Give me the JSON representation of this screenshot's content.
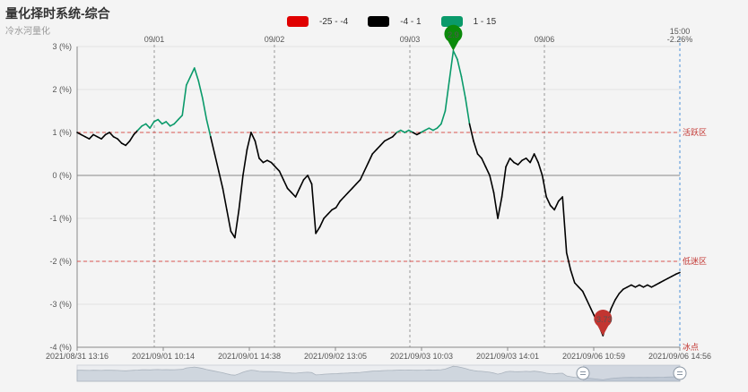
{
  "header": {
    "title": "量化择时系统-综合",
    "subtitle": "冷水河量化"
  },
  "legend": [
    {
      "label": "-25 - -4",
      "color": "#e00000"
    },
    {
      "label": "-4 - 1",
      "color": "#000000"
    },
    {
      "label": "1 - 15",
      "color": "#0a9a6a"
    }
  ],
  "chart_data": {
    "type": "line",
    "ylim": [
      -4,
      3
    ],
    "y_ticks": [
      "3 (%)",
      "2 (%)",
      "1 (%)",
      "0 (%)",
      "-1 (%)",
      "-2 (%)",
      "-3 (%)",
      "-4 (%)"
    ],
    "x_ticks_bottom": [
      "2021/08/31 13:16",
      "2021/09/01 10:14",
      "2021/09/01 14:38",
      "2021/09/02 13:05",
      "2021/09/03 10:03",
      "2021/09/03 14:01",
      "2021/09/06 10:59",
      "2021/09/06 14:56"
    ],
    "x_ticks_top": [
      "09/01",
      "09/02",
      "09/03",
      "09/06"
    ],
    "current": {
      "time": "15:00",
      "value": "-2.26%"
    },
    "zones": [
      {
        "label": "活跃区",
        "value": 1
      },
      {
        "label": "低迷区",
        "value": -2
      },
      {
        "label": "冰点",
        "value": -4
      }
    ],
    "markers": {
      "max": "2.9",
      "min": "-3.73"
    },
    "series": [
      {
        "values": [
          1.0,
          0.95,
          0.9,
          0.85,
          0.95,
          0.9,
          0.85,
          0.95,
          1.0,
          0.9,
          0.85,
          0.75,
          0.7,
          0.8,
          0.95,
          1.05,
          1.15,
          1.2,
          1.1,
          1.25,
          1.3,
          1.2,
          1.25,
          1.15,
          1.2,
          1.3,
          1.4,
          2.1,
          2.3,
          2.5,
          2.2,
          1.8,
          1.3,
          0.9,
          0.5,
          0.1,
          -0.3,
          -0.8,
          -1.3,
          -1.45,
          -0.8,
          0.0,
          0.6,
          1.0,
          0.8,
          0.4,
          0.3,
          0.35,
          0.3,
          0.2,
          0.1,
          -0.1,
          -0.3,
          -0.4,
          -0.5,
          -0.3,
          -0.1,
          0.0,
          -0.2,
          -1.35,
          -1.2,
          -1.0,
          -0.9,
          -0.8,
          -0.75,
          -0.6,
          -0.5,
          -0.4,
          -0.3,
          -0.2,
          -0.1,
          0.1,
          0.3,
          0.5,
          0.6,
          0.7,
          0.8,
          0.85,
          0.9,
          1.0,
          1.05,
          1.0,
          1.05,
          1.0,
          0.95,
          1.0,
          1.05,
          1.1,
          1.05,
          1.1,
          1.2,
          1.5,
          2.2,
          2.9,
          2.7,
          2.3,
          1.8,
          1.2,
          0.8,
          0.5,
          0.4,
          0.2,
          0.0,
          -0.4,
          -1.0,
          -0.5,
          0.2,
          0.4,
          0.3,
          0.25,
          0.35,
          0.4,
          0.3,
          0.5,
          0.3,
          0.0,
          -0.5,
          -0.7,
          -0.8,
          -0.6,
          -0.5,
          -1.8,
          -2.2,
          -2.5,
          -2.6,
          -2.7,
          -2.9,
          -3.1,
          -3.3,
          -3.5,
          -3.73,
          -3.4,
          -3.1,
          -2.9,
          -2.75,
          -2.65,
          -2.6,
          -2.55,
          -2.6,
          -2.55,
          -2.6,
          -2.55,
          -2.6,
          -2.55,
          -2.5,
          -2.45,
          -2.4,
          -2.35,
          -2.3,
          -2.26
        ]
      }
    ]
  }
}
